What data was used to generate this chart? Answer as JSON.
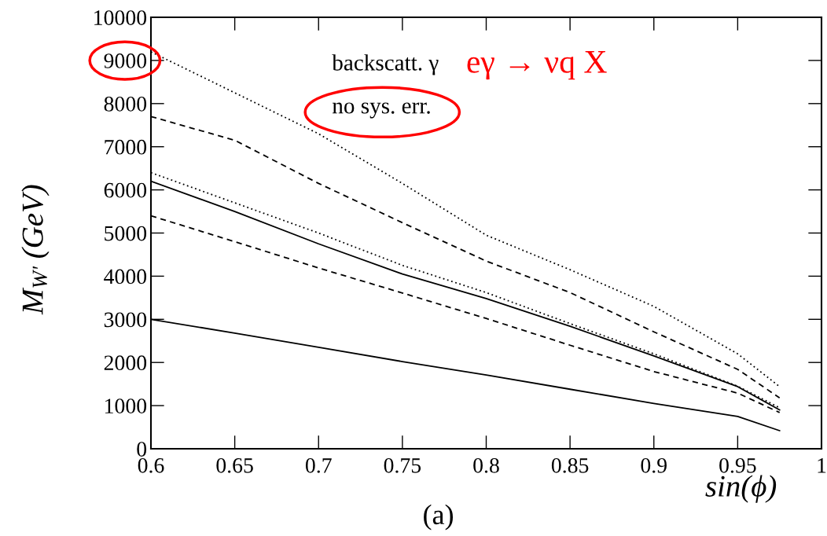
{
  "chart_data": {
    "type": "line",
    "xlabel": "sin(ϕ)",
    "ylabel": "M$_{W'}$ (GeV)",
    "x": [
      0.6,
      0.65,
      0.7,
      0.75,
      0.8,
      0.85,
      0.9,
      0.95,
      0.975
    ],
    "series": [
      {
        "color": "#000000",
        "line_style": "dotted",
        "values": [
          9200,
          8250,
          7300,
          6150,
          4950,
          4150,
          3300,
          2200,
          1440
        ]
      },
      {
        "color": "#000000",
        "line_style": "dashed",
        "values": [
          7700,
          7150,
          6150,
          5240,
          4350,
          3620,
          2710,
          1840,
          1180
        ]
      },
      {
        "color": "#000000",
        "line_style": "dotted",
        "values": [
          6400,
          5700,
          5000,
          4250,
          3620,
          2900,
          2200,
          1450,
          950
        ]
      },
      {
        "color": "#000000",
        "line_style": "solid",
        "values": [
          6200,
          5500,
          4750,
          4050,
          3480,
          2840,
          2150,
          1440,
          900
        ]
      },
      {
        "color": "#000000",
        "line_style": "dashed",
        "values": [
          5400,
          4800,
          4190,
          3610,
          3020,
          2400,
          1790,
          1290,
          840
        ]
      },
      {
        "color": "#000000",
        "line_style": "solid",
        "values": [
          3000,
          2680,
          2350,
          2020,
          1710,
          1380,
          1050,
          750,
          420
        ]
      }
    ],
    "xlim": [
      0.6,
      1
    ],
    "ylim": [
      0,
      10000
    ],
    "xticks": [
      0.6,
      0.65,
      0.7,
      0.75,
      0.8,
      0.85,
      0.9,
      0.95,
      1
    ],
    "yticks": [
      0,
      1000,
      2000,
      3000,
      4000,
      5000,
      6000,
      7000,
      8000,
      9000,
      10000
    ],
    "grid": false,
    "legend": false,
    "marker": "none",
    "annotations": [
      "backscatt. γ",
      "no sys. err.",
      "eγ → νq X",
      "(a)"
    ]
  }
}
